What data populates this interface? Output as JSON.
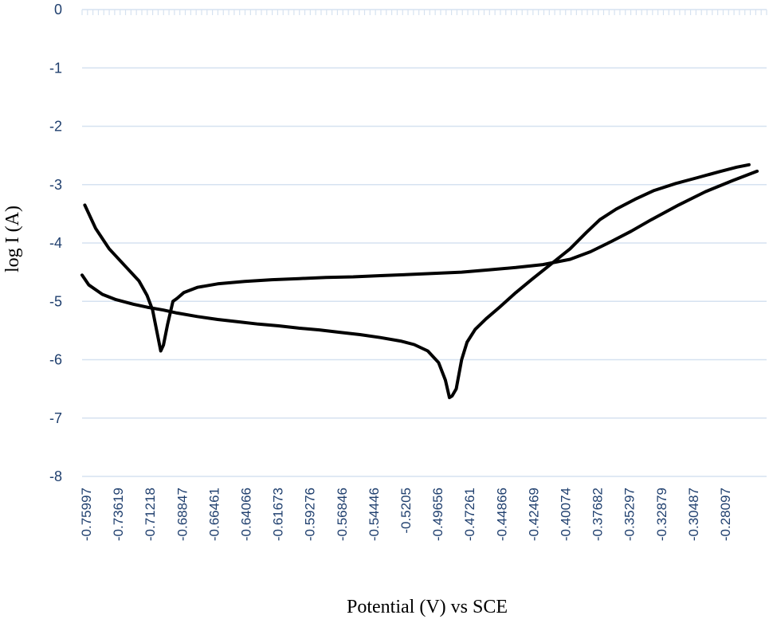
{
  "chart_data": {
    "type": "line",
    "title": "",
    "xlabel": "Potential  (V) vs   SCE",
    "ylabel": "log I (A)",
    "ylim": [
      -8,
      0
    ],
    "yticks": [
      "0",
      "-1",
      "-2",
      "-3",
      "-4",
      "-5",
      "-6",
      "-7",
      "-8"
    ],
    "xlim": [
      -0.76,
      -0.255
    ],
    "xticks": [
      "-0.75997",
      "-0.73619",
      "-0.71218",
      "-0.68847",
      "-0.66461",
      "-0.64066",
      "-0.61673",
      "-0.59276",
      "-0.56846",
      "-0.54446",
      "-0.5205",
      "-0.49656",
      "-0.47261",
      "-0.44866",
      "-0.42469",
      "-0.40074",
      "-0.37682",
      "-0.35297",
      "-0.32879",
      "-0.30487",
      "-0.28097"
    ],
    "grid": "horizontal",
    "legend": "none",
    "colors": {
      "line": "#000000",
      "grid": "#d6e2f0",
      "tick_text": "#1f3f6e"
    },
    "series": [
      {
        "x": [
          -0.76,
          -0.755,
          -0.745,
          -0.735,
          -0.722,
          -0.712,
          -0.7,
          -0.69,
          -0.675,
          -0.66,
          -0.645,
          -0.63,
          -0.615,
          -0.6,
          -0.585,
          -0.57,
          -0.555,
          -0.54,
          -0.525,
          -0.515,
          -0.505,
          -0.497,
          -0.492,
          -0.489,
          -0.487,
          -0.484,
          -0.48,
          -0.476,
          -0.47,
          -0.462,
          -0.452,
          -0.44,
          -0.428,
          -0.415,
          -0.4,
          -0.388,
          -0.378,
          -0.366,
          -0.352,
          -0.338,
          -0.322,
          -0.306,
          -0.29,
          -0.277,
          -0.268
        ],
        "y": [
          -4.55,
          -4.72,
          -4.88,
          -4.97,
          -5.05,
          -5.1,
          -5.15,
          -5.2,
          -5.26,
          -5.31,
          -5.35,
          -5.39,
          -5.42,
          -5.46,
          -5.49,
          -5.53,
          -5.57,
          -5.62,
          -5.68,
          -5.74,
          -5.85,
          -6.05,
          -6.35,
          -6.65,
          -6.62,
          -6.5,
          -6.0,
          -5.7,
          -5.48,
          -5.3,
          -5.1,
          -4.85,
          -4.62,
          -4.38,
          -4.1,
          -3.82,
          -3.6,
          -3.42,
          -3.25,
          -3.1,
          -2.98,
          -2.88,
          -2.78,
          -2.7,
          -2.66
        ]
      },
      {
        "x": [
          -0.758,
          -0.75,
          -0.74,
          -0.728,
          -0.718,
          -0.712,
          -0.708,
          -0.705,
          -0.702,
          -0.7,
          -0.697,
          -0.693,
          -0.69,
          -0.685,
          -0.675,
          -0.66,
          -0.64,
          -0.62,
          -0.6,
          -0.58,
          -0.56,
          -0.54,
          -0.52,
          -0.5,
          -0.48,
          -0.46,
          -0.44,
          -0.42,
          -0.4,
          -0.385,
          -0.37,
          -0.355,
          -0.34,
          -0.32,
          -0.3,
          -0.28,
          -0.262
        ],
        "y": [
          -3.35,
          -3.75,
          -4.1,
          -4.4,
          -4.65,
          -4.9,
          -5.15,
          -5.5,
          -5.85,
          -5.75,
          -5.4,
          -5.0,
          -4.95,
          -4.85,
          -4.76,
          -4.7,
          -4.66,
          -4.63,
          -4.61,
          -4.59,
          -4.58,
          -4.56,
          -4.54,
          -4.52,
          -4.5,
          -4.46,
          -4.42,
          -4.37,
          -4.28,
          -4.15,
          -3.98,
          -3.8,
          -3.6,
          -3.35,
          -3.12,
          -2.93,
          -2.77
        ]
      }
    ]
  }
}
